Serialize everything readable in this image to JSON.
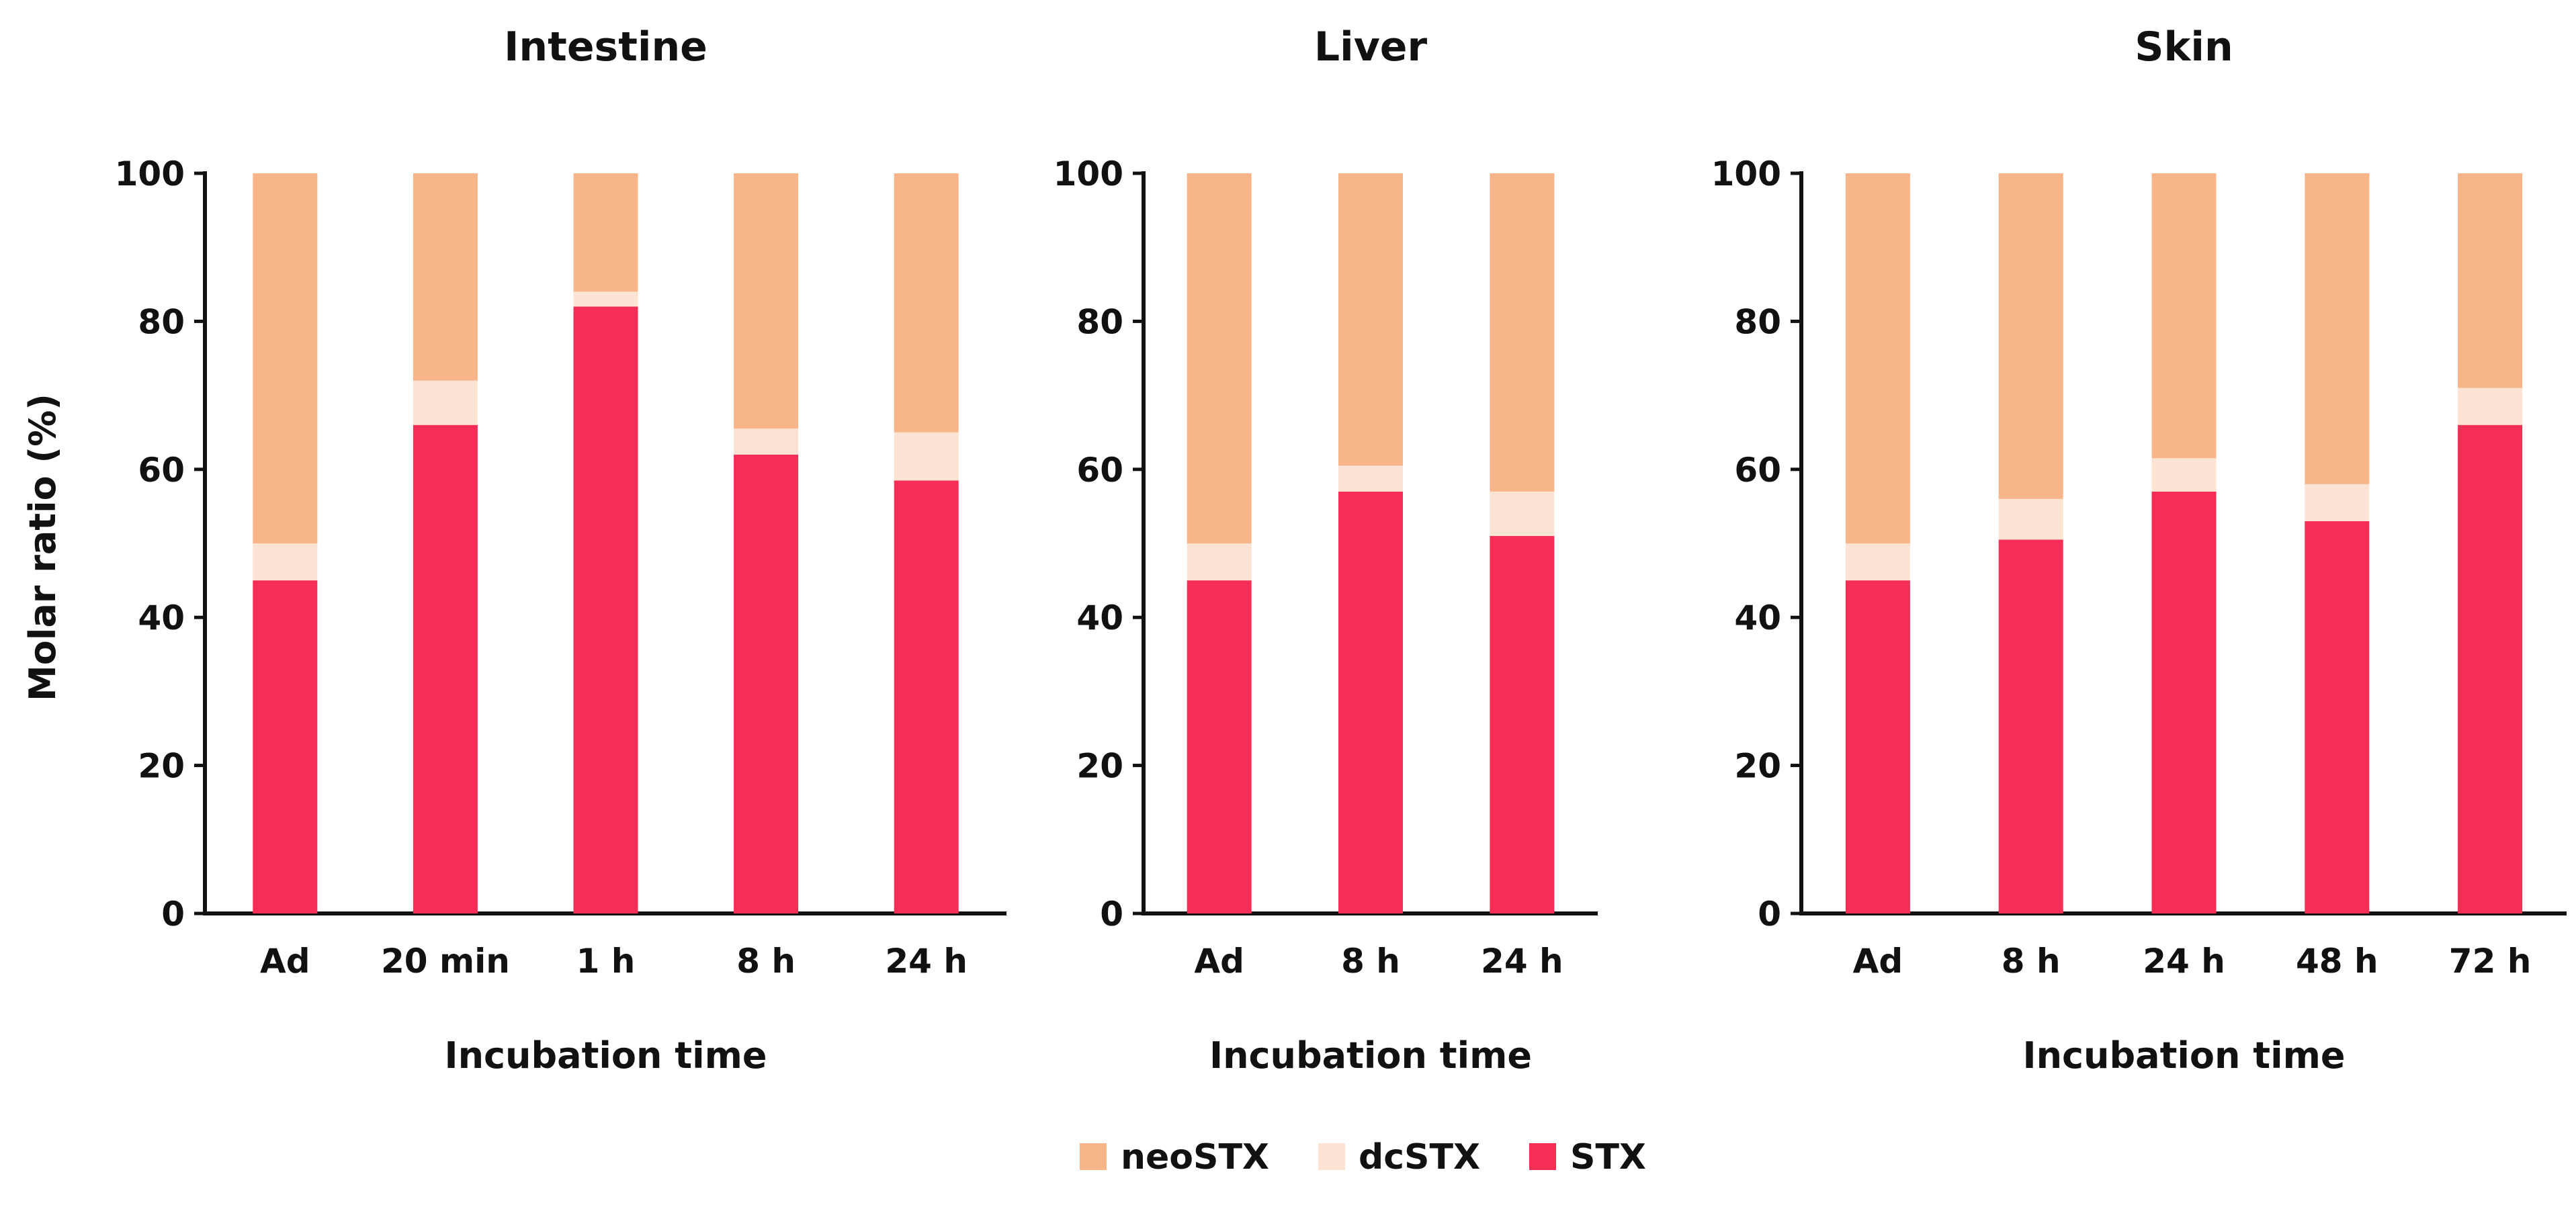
{
  "colors": {
    "neoSTX": "#F9B58A",
    "dcSTX": "#FDE3D3",
    "STX": "#F62E55"
  },
  "ylabel": "Molar ratio (%)",
  "legend": [
    {
      "key": "neoSTX",
      "label": "neoSTX"
    },
    {
      "key": "dcSTX",
      "label": "dcSTX"
    },
    {
      "key": "STX",
      "label": "STX"
    }
  ],
  "chart_data": [
    {
      "type": "bar",
      "stacked": true,
      "title": "Intestine",
      "xlabel": "Incubation time",
      "ylabel": "Molar ratio (%)",
      "ylim": [
        0,
        100
      ],
      "yticks": [
        0,
        20,
        40,
        60,
        80,
        100
      ],
      "categories": [
        "Ad",
        "20 min",
        "1 h",
        "8 h",
        "24 h"
      ],
      "series": [
        {
          "name": "STX",
          "values": [
            45,
            66,
            82,
            62,
            58.5
          ]
        },
        {
          "name": "dcSTX",
          "values": [
            5,
            6,
            2,
            3.5,
            6.5
          ]
        },
        {
          "name": "neoSTX",
          "values": [
            50,
            28,
            16,
            34.5,
            35
          ]
        }
      ]
    },
    {
      "type": "bar",
      "stacked": true,
      "title": "Liver",
      "xlabel": "Incubation time",
      "ylabel": "",
      "ylim": [
        0,
        100
      ],
      "yticks": [
        0,
        20,
        40,
        60,
        80,
        100
      ],
      "categories": [
        "Ad",
        "8 h",
        "24 h"
      ],
      "series": [
        {
          "name": "STX",
          "values": [
            45,
            57,
            51
          ]
        },
        {
          "name": "dcSTX",
          "values": [
            5,
            3.5,
            6
          ]
        },
        {
          "name": "neoSTX",
          "values": [
            50,
            39.5,
            43
          ]
        }
      ]
    },
    {
      "type": "bar",
      "stacked": true,
      "title": "Skin",
      "xlabel": "Incubation time",
      "ylabel": "",
      "ylim": [
        0,
        100
      ],
      "yticks": [
        0,
        20,
        40,
        60,
        80,
        100
      ],
      "categories": [
        "Ad",
        "8 h",
        "24 h",
        "48 h",
        "72 h"
      ],
      "series": [
        {
          "name": "STX",
          "values": [
            45,
            50.5,
            57,
            53,
            66
          ]
        },
        {
          "name": "dcSTX",
          "values": [
            5,
            5.5,
            4.5,
            5,
            5
          ]
        },
        {
          "name": "neoSTX",
          "values": [
            50,
            44,
            38.5,
            42,
            29
          ]
        }
      ]
    }
  ]
}
